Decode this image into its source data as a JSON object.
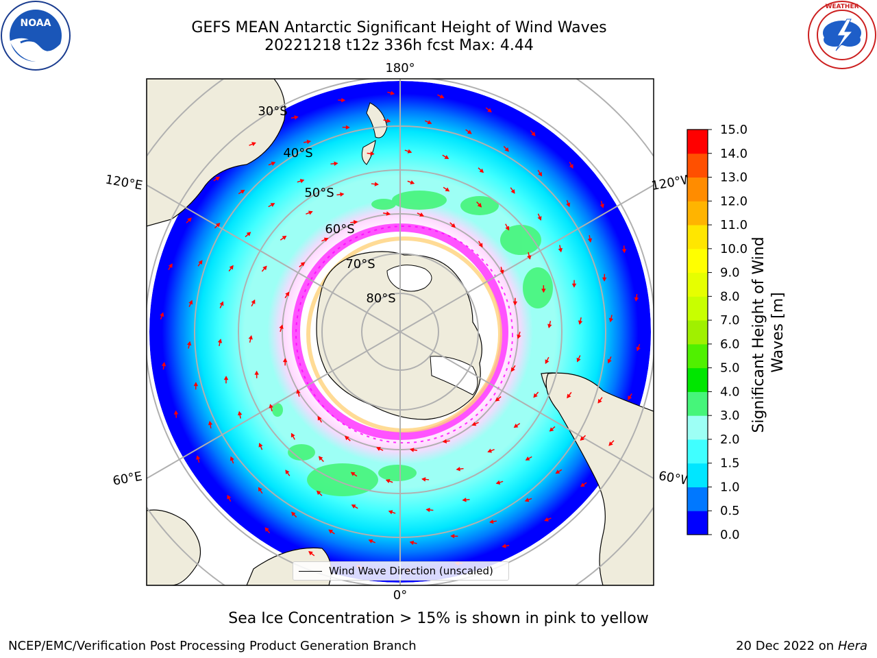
{
  "title": {
    "line1": "GEFS MEAN Antarctic Significant Height of Wind Waves",
    "line2": "20221218 t12z 336h fcst   Max: 4.44"
  },
  "map": {
    "projection": "south-polar-stereographic",
    "longitude_labels": {
      "top": "180°",
      "bottom": "0°",
      "upper_left": "120°E",
      "upper_right": "120°W",
      "lower_left": "60°E",
      "lower_right": "60°W"
    },
    "latitude_labels": [
      "30°S",
      "40°S",
      "50°S",
      "60°S",
      "70°S",
      "80°S"
    ],
    "legend_label": "Wind Wave Direction (unscaled)",
    "colors": {
      "land": "#efecdc",
      "gridline": "#b0b0b0",
      "arrow": "#ff0000",
      "sea_ice_low": "#ff00ff",
      "sea_ice_high": "#ffff00"
    }
  },
  "colorbar": {
    "label": "Significant Height of Wind Waves [m]",
    "ticks": [
      "0.0",
      "0.5",
      "1.0",
      "1.5",
      "2.0",
      "3.0",
      "4.0",
      "5.0",
      "6.0",
      "7.0",
      "8.0",
      "9.0",
      "10.0",
      "11.0",
      "12.0",
      "13.0",
      "14.0",
      "15.0"
    ],
    "colors": [
      "#0000ff",
      "#0078ff",
      "#00e6ff",
      "#40ffff",
      "#9dfff5",
      "#46f57a",
      "#00e600",
      "#50f000",
      "#a0f000",
      "#c8ff00",
      "#e6ff00",
      "#ffff00",
      "#ffe600",
      "#ffb400",
      "#ff8c00",
      "#ff5000",
      "#ff0000"
    ]
  },
  "footer": {
    "subtitle": "Sea Ice Concentration > 15% is shown in pink to yellow",
    "credit": "NCEP/EMC/Verification Post Processing Product Generation Branch",
    "date": "20 Dec 2022 on",
    "host": "Hera"
  },
  "logos": {
    "noaa": "NOAA",
    "nws": "NATIONAL WEATHER SERVICE"
  }
}
